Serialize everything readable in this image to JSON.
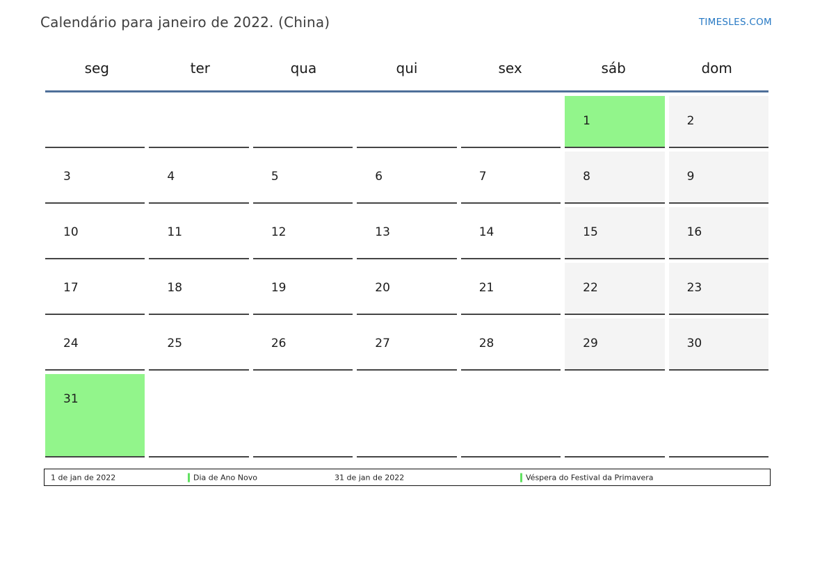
{
  "header": {
    "title": "Calendário para janeiro de 2022. (China)",
    "site_link": "TIMESLES.COM"
  },
  "calendar": {
    "weekday_headers": [
      "seg",
      "ter",
      "qua",
      "qui",
      "sex",
      "sáb",
      "dom"
    ],
    "weeks": [
      [
        {
          "day": "",
          "type": "plain"
        },
        {
          "day": "",
          "type": "plain"
        },
        {
          "day": "",
          "type": "plain"
        },
        {
          "day": "",
          "type": "plain"
        },
        {
          "day": "",
          "type": "plain"
        },
        {
          "day": "1",
          "type": "holiday"
        },
        {
          "day": "2",
          "type": "weekend"
        }
      ],
      [
        {
          "day": "3",
          "type": "plain"
        },
        {
          "day": "4",
          "type": "plain"
        },
        {
          "day": "5",
          "type": "plain"
        },
        {
          "day": "6",
          "type": "plain"
        },
        {
          "day": "7",
          "type": "plain"
        },
        {
          "day": "8",
          "type": "weekend"
        },
        {
          "day": "9",
          "type": "weekend"
        }
      ],
      [
        {
          "day": "10",
          "type": "plain"
        },
        {
          "day": "11",
          "type": "plain"
        },
        {
          "day": "12",
          "type": "plain"
        },
        {
          "day": "13",
          "type": "plain"
        },
        {
          "day": "14",
          "type": "plain"
        },
        {
          "day": "15",
          "type": "weekend"
        },
        {
          "day": "16",
          "type": "weekend"
        }
      ],
      [
        {
          "day": "17",
          "type": "plain"
        },
        {
          "day": "18",
          "type": "plain"
        },
        {
          "day": "19",
          "type": "plain"
        },
        {
          "day": "20",
          "type": "plain"
        },
        {
          "day": "21",
          "type": "plain"
        },
        {
          "day": "22",
          "type": "weekend"
        },
        {
          "day": "23",
          "type": "weekend"
        }
      ],
      [
        {
          "day": "24",
          "type": "plain"
        },
        {
          "day": "25",
          "type": "plain"
        },
        {
          "day": "26",
          "type": "plain"
        },
        {
          "day": "27",
          "type": "plain"
        },
        {
          "day": "28",
          "type": "plain"
        },
        {
          "day": "29",
          "type": "weekend"
        },
        {
          "day": "30",
          "type": "weekend"
        }
      ],
      [
        {
          "day": "31",
          "type": "holiday"
        },
        {
          "day": "",
          "type": "plain"
        },
        {
          "day": "",
          "type": "plain"
        },
        {
          "day": "",
          "type": "plain"
        },
        {
          "day": "",
          "type": "plain"
        },
        {
          "day": "",
          "type": "plain"
        },
        {
          "day": "",
          "type": "plain"
        }
      ]
    ]
  },
  "legend": {
    "entries": [
      {
        "date": "1 de jan de 2022",
        "event": "Dia de Ano Novo"
      },
      {
        "date": "31 de jan de 2022",
        "event": "Véspera do Festival da Primavera"
      }
    ]
  },
  "colors": {
    "holiday_green": "#92f58b",
    "weekend_gray": "#f4f4f4",
    "cell_border": "#444444",
    "header_line_blue": "#4e6f99",
    "link_blue": "#2779c4",
    "legend_marker_green": "#62e162",
    "title_text": "#3d3d3d",
    "day_text": "#1c1c1c",
    "footer_border": "#111111"
  }
}
